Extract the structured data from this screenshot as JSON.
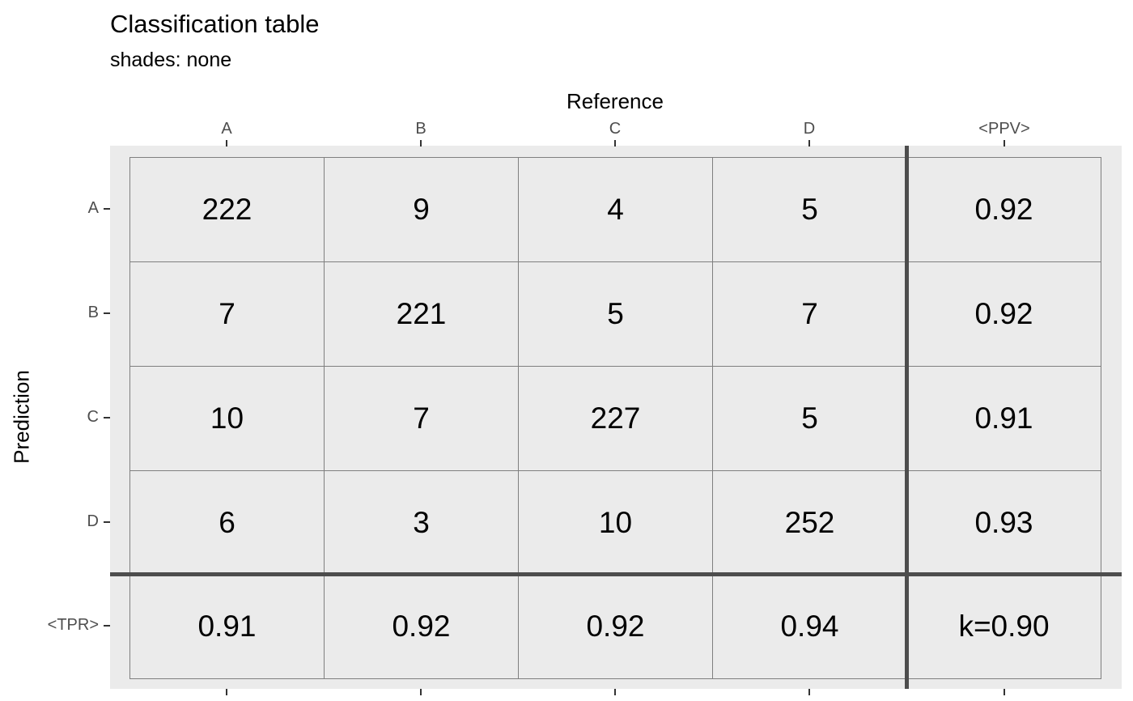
{
  "chart_data": {
    "type": "table",
    "title": "Classification table",
    "subtitle": "shades: none",
    "xlabel": "Reference",
    "ylabel": "Prediction",
    "columns": [
      "A",
      "B",
      "C",
      "D",
      "<PPV>"
    ],
    "rows": [
      "A",
      "B",
      "C",
      "D",
      "<TPR>"
    ],
    "cells": [
      [
        "222",
        "9",
        "4",
        "5",
        "0.92"
      ],
      [
        "7",
        "221",
        "5",
        "7",
        "0.92"
      ],
      [
        "10",
        "7",
        "227",
        "5",
        "0.91"
      ],
      [
        "6",
        "3",
        "10",
        "252",
        "0.93"
      ],
      [
        "0.91",
        "0.92",
        "0.92",
        "0.94",
        "k=0.90"
      ]
    ],
    "confusion_matrix": [
      [
        222,
        9,
        4,
        5
      ],
      [
        7,
        221,
        5,
        7
      ],
      [
        10,
        7,
        227,
        5
      ],
      [
        6,
        3,
        10,
        252
      ]
    ],
    "ppv": [
      0.92,
      0.92,
      0.91,
      0.93
    ],
    "tpr": [
      0.91,
      0.92,
      0.92,
      0.94
    ],
    "kappa": 0.9
  }
}
